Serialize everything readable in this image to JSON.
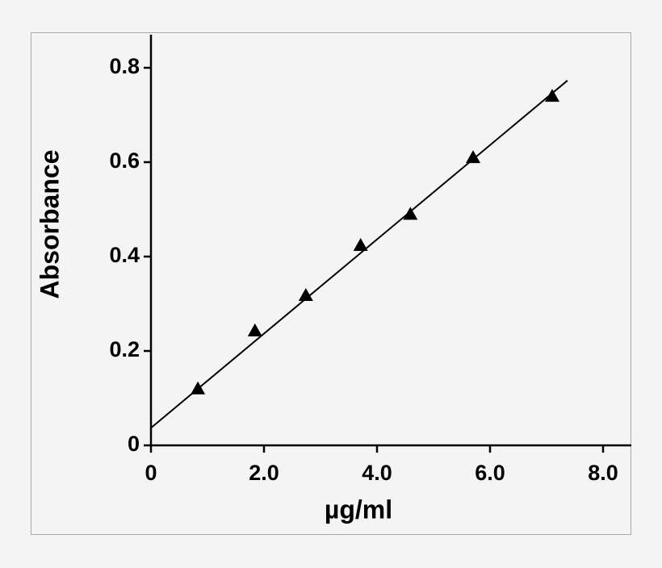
{
  "chart_data": {
    "type": "scatter",
    "x_label": "µg/ml",
    "y_label": "Absorbance",
    "series": [
      {
        "color": "#000000",
        "x": [
          0.83,
          1.84,
          2.74,
          3.71,
          4.59,
          5.7,
          7.1
        ],
        "values": [
          0.12,
          0.243,
          0.318,
          0.424,
          0.49,
          0.61,
          0.74
        ]
      }
    ],
    "fit": {
      "color": "#000000",
      "x": [
        0,
        7.37
      ],
      "values": [
        0.037,
        0.773
      ]
    },
    "xlim": [
      0,
      8.5
    ],
    "xticks": [
      0,
      {
        "value": 2,
        "label": "2.0"
      },
      {
        "value": 4,
        "label": "4.0"
      },
      {
        "value": 6,
        "label": "6.0"
      },
      {
        "value": 8,
        "label": "8.0"
      }
    ],
    "ylim": [
      0,
      0.87
    ],
    "yticks": [
      0,
      0.2,
      0.4,
      0.6,
      0.8
    ]
  }
}
